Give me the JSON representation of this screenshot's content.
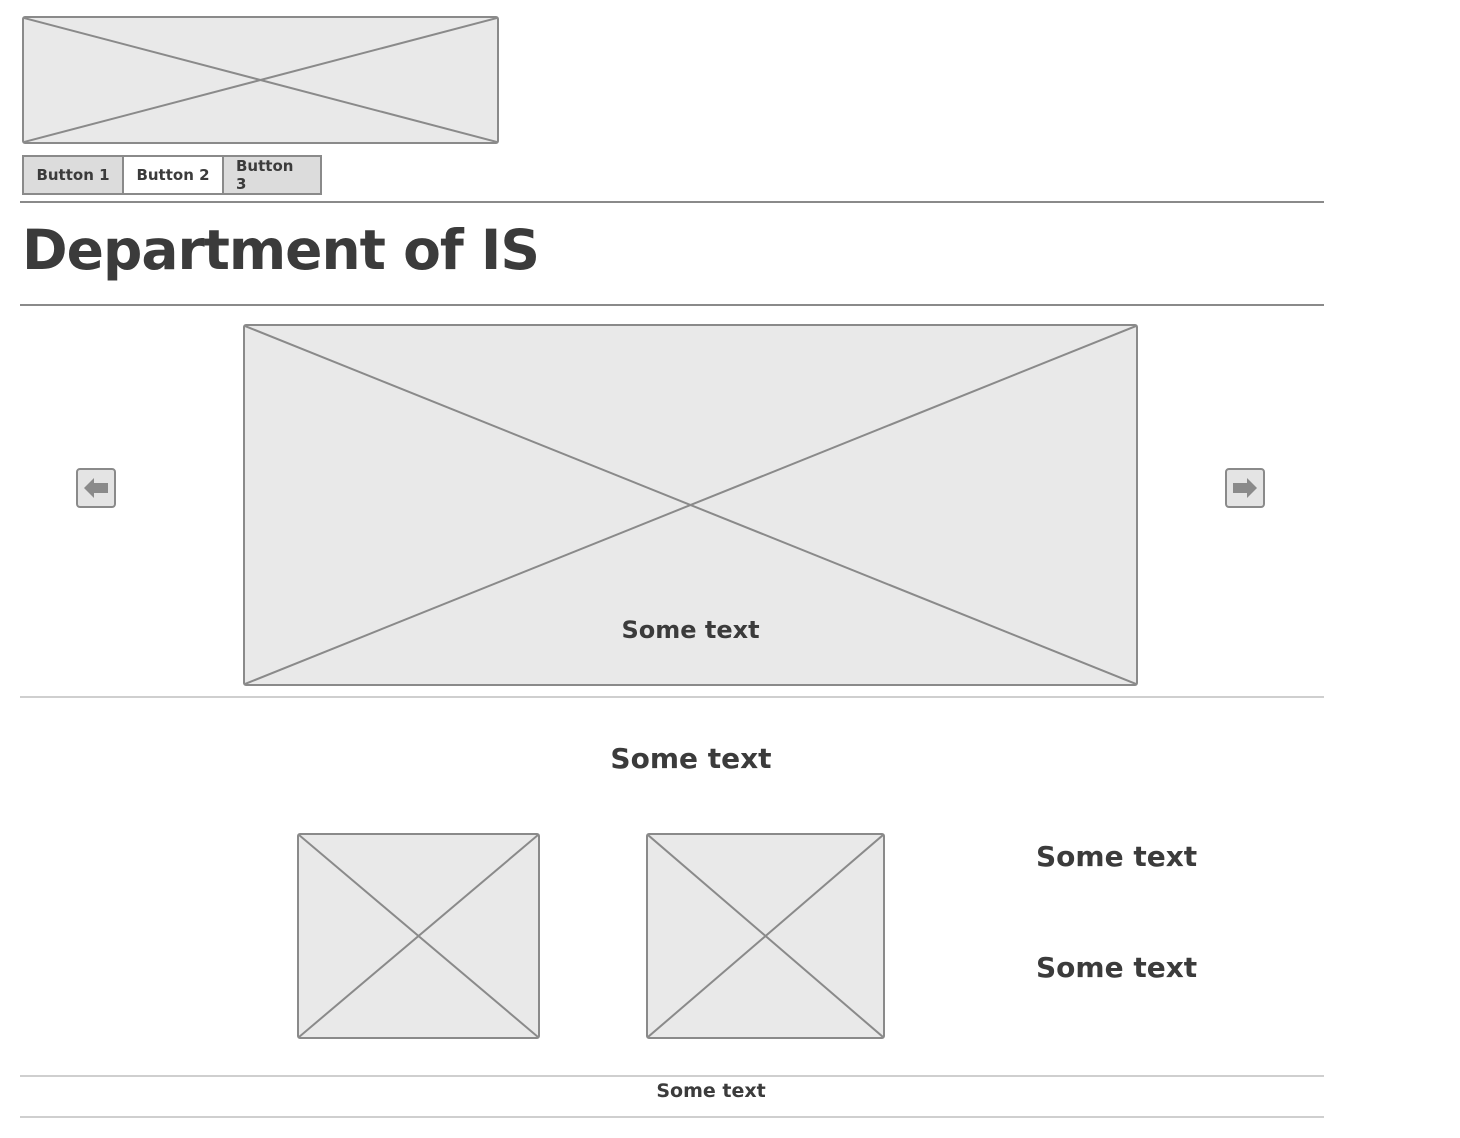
{
  "nav": {
    "buttons": [
      {
        "label": "Button 1",
        "selected": false
      },
      {
        "label": "Button 2",
        "selected": true
      },
      {
        "label": "Button 3",
        "selected": false
      }
    ]
  },
  "page": {
    "title": "Department of IS"
  },
  "carousel": {
    "caption": "Some text",
    "prev_icon": "arrow-left-icon",
    "next_icon": "arrow-right-icon"
  },
  "section": {
    "heading": "Some text",
    "side_texts": [
      "Some text",
      "Some text"
    ]
  },
  "footer": {
    "text": "Some text"
  },
  "colors": {
    "placeholder_fill": "#e9e9e9",
    "outline": "#8a8a8a",
    "text": "#3b3b3b"
  }
}
